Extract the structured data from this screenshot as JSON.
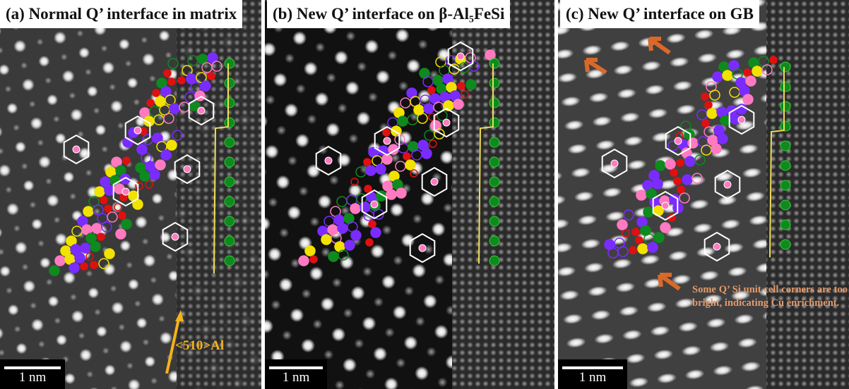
{
  "panels": [
    {
      "label": "(a) Normal Q’ interface in matrix",
      "scale_bar": "1 nm",
      "direction": "<510>Al"
    },
    {
      "label": "(b) New Q’ interface on β-Al₅FeSi",
      "scale_bar": "1 nm"
    },
    {
      "label": "(c) New Q’ interface on GB",
      "scale_bar": "1 nm",
      "annotation": "Some Q’ Si unit cell corners are too bright, indicating Cu enrichment."
    }
  ]
}
